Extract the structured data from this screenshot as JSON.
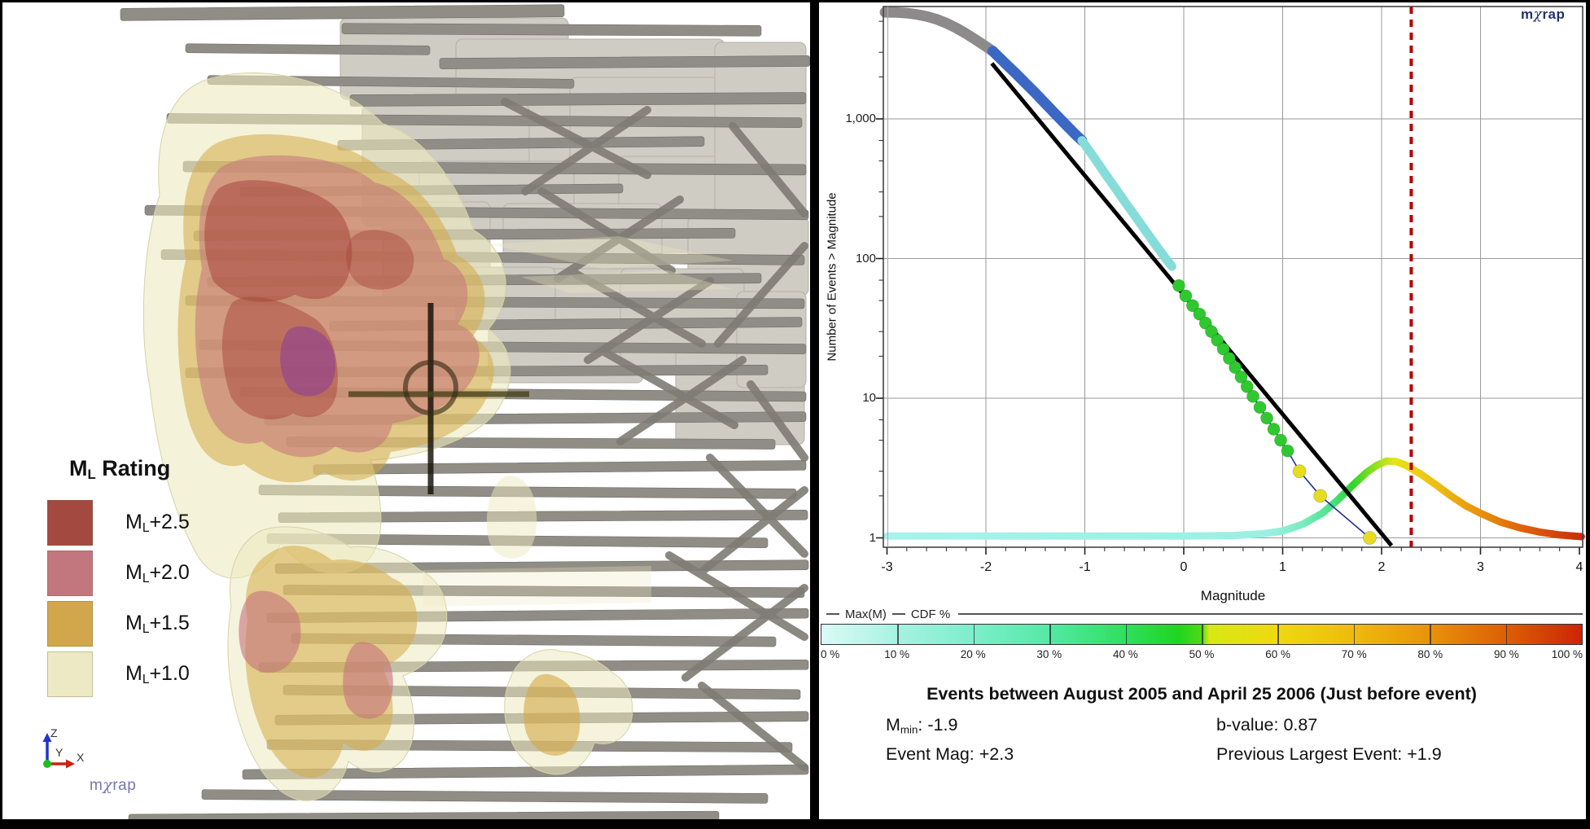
{
  "left_panel": {
    "legend": {
      "title": {
        "pre": "M",
        "sub": "L",
        "post": " Rating"
      },
      "items": [
        {
          "pre": "M",
          "sub": "L",
          "val": "+2.5",
          "color": "#A3493F"
        },
        {
          "pre": "M",
          "sub": "L",
          "val": "+2.0",
          "color": "#C2767E"
        },
        {
          "pre": "M",
          "sub": "L",
          "val": "+1.5",
          "color": "#D2A74B"
        },
        {
          "pre": "M",
          "sub": "L",
          "val": "+1.0",
          "color": "#EDE9C4"
        }
      ]
    },
    "triad": {
      "x": "X",
      "y": "Y",
      "z": "Z"
    },
    "logo": {
      "pre": "m",
      "chi": "χ",
      "post": "rap"
    }
  },
  "chart": {
    "logo": {
      "pre": "m",
      "chi": "χ",
      "post": "rap"
    },
    "y_axis_title": "Number of Events > Magnitude",
    "x_axis_title": "Magnitude",
    "x_tick_labels": [
      "-3",
      "-2",
      "-1",
      "0",
      "1",
      "2",
      "3",
      "4"
    ],
    "y_tick_labels": [
      "1,000",
      "100",
      "10",
      "1"
    ],
    "legend": {
      "max_m": "Max(M)",
      "cdf": "CDF %"
    },
    "colorbar_labels": [
      "0 %",
      "10 %",
      "20 %",
      "30 %",
      "40 %",
      "50 %",
      "60 %",
      "70 %",
      "80 %",
      "90 %",
      "100 %"
    ],
    "stats": {
      "title": "Events between August 2005 and April 25 2006 (Just before event)",
      "mmin": {
        "pre": "M",
        "sub": "min",
        "post": ": -1.9"
      },
      "b_value": "b-value: 0.87",
      "event_mag": "Event Mag: +2.3",
      "prev_largest": "Previous Largest Event: +1.9"
    }
  },
  "chart_data": {
    "type": "line",
    "title": "Events between August 2005 and April 25 2006 (Just before event)",
    "xlabel": "Magnitude",
    "ylabel": "Number of Events > Magnitude",
    "x_range": [
      -3.04,
      4.03
    ],
    "y_scale": "log",
    "y_range": [
      0.88,
      6500
    ],
    "x_ticks": [
      -3,
      -2,
      -1,
      0,
      1,
      2,
      3,
      4
    ],
    "y_ticks": [
      1000,
      100,
      10,
      1
    ],
    "grid": true,
    "mmin": -1.9,
    "b_value": 0.87,
    "event_magnitude": 2.3,
    "previous_largest_event": 1.9,
    "event_line": {
      "magnitude": 2.3,
      "color": "#B40000",
      "style": "dashed"
    },
    "series": [
      {
        "name": "cumulative-events-gray",
        "color": "#8C8A8A",
        "width": 13,
        "points": [
          [
            -3.02,
            5800
          ],
          [
            -2.9,
            5780
          ],
          [
            -2.8,
            5720
          ],
          [
            -2.7,
            5600
          ],
          [
            -2.6,
            5420
          ],
          [
            -2.5,
            5170
          ],
          [
            -2.4,
            4850
          ],
          [
            -2.3,
            4480
          ],
          [
            -2.2,
            4080
          ],
          [
            -2.1,
            3680
          ],
          [
            -2.0,
            3300
          ],
          [
            -1.93,
            3050
          ]
        ]
      },
      {
        "name": "cumulative-events-blue",
        "color": "#3A68C4",
        "width": 13,
        "points": [
          [
            -1.93,
            3050
          ],
          [
            -1.8,
            2480
          ],
          [
            -1.7,
            2120
          ],
          [
            -1.6,
            1800
          ],
          [
            -1.5,
            1530
          ],
          [
            -1.4,
            1290
          ],
          [
            -1.3,
            1090
          ],
          [
            -1.2,
            920
          ],
          [
            -1.1,
            780
          ],
          [
            -1.03,
            700
          ]
        ]
      },
      {
        "name": "cumulative-events-cyan",
        "color": "#86DCD8",
        "width": 11,
        "points": [
          [
            -1.03,
            700
          ],
          [
            -0.9,
            520
          ],
          [
            -0.8,
            410
          ],
          [
            -0.7,
            325
          ],
          [
            -0.6,
            258
          ],
          [
            -0.5,
            205
          ],
          [
            -0.4,
            163
          ],
          [
            -0.3,
            130
          ],
          [
            -0.2,
            104
          ],
          [
            -0.12,
            88
          ]
        ]
      },
      {
        "name": "cumulative-events-green-dots",
        "color": "#2FC92F",
        "dot_radius": 7.5,
        "points": [
          [
            -0.05,
            64
          ],
          [
            0.02,
            54
          ],
          [
            0.09,
            46
          ],
          [
            0.16,
            40
          ],
          [
            0.22,
            34.5
          ],
          [
            0.28,
            30
          ],
          [
            0.34,
            26
          ],
          [
            0.4,
            22.5
          ],
          [
            0.46,
            19.3
          ],
          [
            0.52,
            16.6
          ],
          [
            0.58,
            14.2
          ],
          [
            0.64,
            12.1
          ],
          [
            0.7,
            10.3
          ],
          [
            0.77,
            8.6
          ],
          [
            0.84,
            7.2
          ],
          [
            0.91,
            6.0
          ],
          [
            0.98,
            5.0
          ],
          [
            1.05,
            4.2
          ]
        ]
      },
      {
        "name": "cumulative-events-yellow-dots",
        "color": "#E8DB22",
        "dot_radius": 8,
        "points": [
          [
            1.17,
            3.0
          ],
          [
            1.38,
            2.0
          ],
          [
            1.88,
            1.0
          ]
        ]
      },
      {
        "name": "tail-connector",
        "color": "#22309A",
        "width": 1.6,
        "points": [
          [
            0.52,
            16.6
          ],
          [
            0.58,
            14.2
          ],
          [
            0.64,
            12.1
          ],
          [
            0.7,
            10.3
          ],
          [
            0.77,
            8.6
          ],
          [
            0.84,
            7.2
          ],
          [
            0.91,
            6.0
          ],
          [
            0.98,
            5.0
          ],
          [
            1.05,
            4.2
          ],
          [
            1.17,
            3.0
          ],
          [
            1.38,
            2.0
          ],
          [
            1.88,
            1.0
          ]
        ]
      },
      {
        "name": "gutenberg-richter-fit",
        "color": "#000000",
        "width": 5,
        "points": [
          [
            -1.94,
            2500
          ],
          [
            2.1,
            0.88
          ]
        ]
      },
      {
        "name": "max-magnitude-distribution",
        "gradient": "maxm",
        "width": 9,
        "points": [
          [
            -3.0,
            1.03
          ],
          [
            -1.0,
            1.03
          ],
          [
            0.0,
            1.03
          ],
          [
            0.5,
            1.04
          ],
          [
            0.8,
            1.07
          ],
          [
            1.0,
            1.12
          ],
          [
            1.2,
            1.25
          ],
          [
            1.4,
            1.5
          ],
          [
            1.55,
            1.85
          ],
          [
            1.7,
            2.35
          ],
          [
            1.85,
            2.95
          ],
          [
            1.95,
            3.3
          ],
          [
            2.05,
            3.55
          ],
          [
            2.15,
            3.52
          ],
          [
            2.25,
            3.3
          ],
          [
            2.4,
            2.85
          ],
          [
            2.55,
            2.4
          ],
          [
            2.7,
            2.0
          ],
          [
            2.85,
            1.7
          ],
          [
            3.0,
            1.5
          ],
          [
            3.2,
            1.3
          ],
          [
            3.4,
            1.18
          ],
          [
            3.6,
            1.1
          ],
          [
            3.8,
            1.05
          ],
          [
            4.02,
            1.02
          ]
        ]
      }
    ],
    "maxm_gradient_stops": [
      [
        0,
        "#a9f1ec"
      ],
      [
        55,
        "#9bf0e2"
      ],
      [
        60,
        "#79ecc0"
      ],
      [
        64,
        "#4ce287"
      ],
      [
        67,
        "#2ed42e"
      ],
      [
        70,
        "#86df1e"
      ],
      [
        73,
        "#e6e417"
      ],
      [
        78,
        "#eec513"
      ],
      [
        85,
        "#e9940f"
      ],
      [
        92,
        "#de5f0a"
      ],
      [
        100,
        "#cc2b0d"
      ]
    ],
    "colorbar": {
      "stops": [
        [
          0,
          "#d9faf5"
        ],
        [
          5,
          "#c2f6ec"
        ],
        [
          10,
          "#a6f2e2"
        ],
        [
          20,
          "#7deecb"
        ],
        [
          30,
          "#55e8a6"
        ],
        [
          40,
          "#2fdf5d"
        ],
        [
          47,
          "#1fd51f"
        ],
        [
          50,
          "#50d918"
        ],
        [
          51,
          "#d8e813"
        ],
        [
          60,
          "#eed90f"
        ],
        [
          70,
          "#eebb0c"
        ],
        [
          80,
          "#e89309"
        ],
        [
          90,
          "#dc5f06"
        ],
        [
          100,
          "#cb2506"
        ]
      ],
      "tick_percents": [
        0,
        10,
        20,
        30,
        40,
        50,
        60,
        70,
        80,
        90,
        100
      ]
    },
    "legend_entries": [
      "Max(M)",
      "CDF %"
    ],
    "legend_position": "below"
  }
}
